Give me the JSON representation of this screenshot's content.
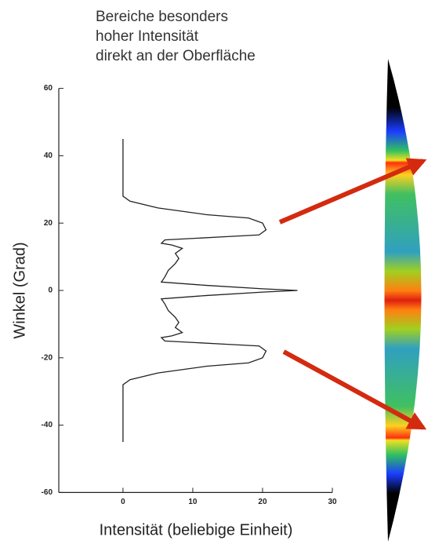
{
  "chart_data": {
    "type": "line",
    "annotation": [
      "Bereiche besonders",
      "hoher Intensität",
      "direkt an der Oberfläche"
    ],
    "xlabel": "Intensität (beliebige Einheit)",
    "ylabel": "Winkel (Grad)",
    "xlim": [
      -9.2,
      30
    ],
    "xticks": [
      0,
      10,
      20,
      30
    ],
    "ylim": [
      -60,
      60
    ],
    "yticks": [
      60,
      40,
      20,
      0,
      -20,
      -40,
      -60
    ],
    "series": [
      {
        "color": "#222222",
        "x": [
          0,
          0,
          1,
          5,
          12,
          18,
          20,
          20.5,
          19.5,
          15,
          6,
          5.5,
          7,
          8.5,
          7.5,
          8,
          7.5,
          6.5,
          6,
          5.5,
          12,
          20,
          25,
          20,
          12,
          5.5,
          6,
          6.5,
          7.5,
          8,
          7.5,
          8.5,
          7,
          5.5,
          6,
          15,
          19.5,
          20.5,
          20,
          18,
          12,
          5,
          1,
          0,
          0
        ],
        "values": [
          45,
          28,
          26.5,
          24.5,
          22.5,
          21.5,
          20,
          18,
          16.5,
          16,
          15,
          14,
          13.5,
          12.5,
          11,
          9.5,
          8,
          6,
          4,
          2.5,
          1.5,
          0.5,
          0,
          -0.5,
          -1.5,
          -2.5,
          -4,
          -6,
          -8,
          -9.5,
          -11,
          -12.5,
          -13.5,
          -14,
          -15,
          -16,
          -16.5,
          -18,
          -20,
          -21.5,
          -22.5,
          -24.5,
          -26.5,
          -28,
          -45
        ]
      }
    ]
  }
}
